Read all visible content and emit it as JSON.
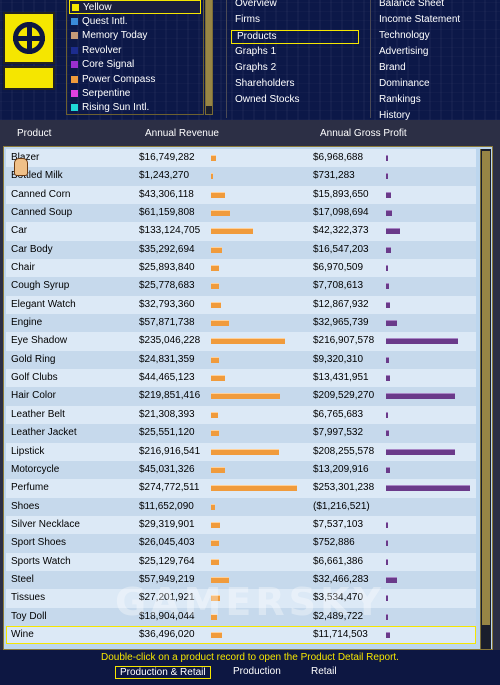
{
  "firms": [
    {
      "name": "Yellow",
      "color": "#f5e600",
      "selected": true
    },
    {
      "name": "Quest Intl.",
      "color": "#3a8bd9"
    },
    {
      "name": "Memory Today",
      "color": "#c49a78"
    },
    {
      "name": "Revolver",
      "color": "#1c2c8e"
    },
    {
      "name": "Core Signal",
      "color": "#9a2fd0"
    },
    {
      "name": "Power Compass",
      "color": "#f09b3c"
    },
    {
      "name": "Serpentine",
      "color": "#e040e0"
    },
    {
      "name": "Rising Sun Intl.",
      "color": "#20d8d8"
    }
  ],
  "menu_left": [
    "Overview",
    "Firms",
    "Products",
    "Graphs 1",
    "Graphs 2",
    "Shareholders",
    "Owned Stocks"
  ],
  "menu_left_selected": "Products",
  "menu_right": [
    "Balance Sheet",
    "Income Statement",
    "Technology",
    "Advertising",
    "Brand",
    "Dominance",
    "Rankings",
    "History"
  ],
  "table": {
    "headers": {
      "product": "Product",
      "revenue": "Annual Revenue",
      "profit": "Annual Gross Profit"
    },
    "rows": [
      {
        "product": "Blazer",
        "revenue": "$16,749,282",
        "profit": "$6,968,688",
        "rev_val": 16749282,
        "prof_val": 6968688
      },
      {
        "product": "Bottled Milk",
        "revenue": "$1,243,270",
        "profit": "$731,283",
        "rev_val": 1243270,
        "prof_val": 731283
      },
      {
        "product": "Canned Corn",
        "revenue": "$43,306,118",
        "profit": "$15,893,650",
        "rev_val": 43306118,
        "prof_val": 15893650
      },
      {
        "product": "Canned Soup",
        "revenue": "$61,159,808",
        "profit": "$17,098,694",
        "rev_val": 61159808,
        "prof_val": 17098694
      },
      {
        "product": "Car",
        "revenue": "$133,124,705",
        "profit": "$42,322,373",
        "rev_val": 133124705,
        "prof_val": 42322373
      },
      {
        "product": "Car Body",
        "revenue": "$35,292,694",
        "profit": "$16,547,203",
        "rev_val": 35292694,
        "prof_val": 16547203
      },
      {
        "product": "Chair",
        "revenue": "$25,893,840",
        "profit": "$6,970,509",
        "rev_val": 25893840,
        "prof_val": 6970509
      },
      {
        "product": "Cough Syrup",
        "revenue": "$25,778,683",
        "profit": "$7,708,613",
        "rev_val": 25778683,
        "prof_val": 7708613
      },
      {
        "product": "Elegant Watch",
        "revenue": "$32,793,360",
        "profit": "$12,867,932",
        "rev_val": 32793360,
        "prof_val": 12867932
      },
      {
        "product": "Engine",
        "revenue": "$57,871,738",
        "profit": "$32,965,739",
        "rev_val": 57871738,
        "prof_val": 32965739
      },
      {
        "product": "Eye Shadow",
        "revenue": "$235,046,228",
        "profit": "$216,907,578",
        "rev_val": 235046228,
        "prof_val": 216907578
      },
      {
        "product": "Gold Ring",
        "revenue": "$24,831,359",
        "profit": "$9,320,310",
        "rev_val": 24831359,
        "prof_val": 9320310
      },
      {
        "product": "Golf Clubs",
        "revenue": "$44,465,123",
        "profit": "$13,431,951",
        "rev_val": 44465123,
        "prof_val": 13431951
      },
      {
        "product": "Hair Color",
        "revenue": "$219,851,416",
        "profit": "$209,529,270",
        "rev_val": 219851416,
        "prof_val": 209529270
      },
      {
        "product": "Leather Belt",
        "revenue": "$21,308,393",
        "profit": "$6,765,683",
        "rev_val": 21308393,
        "prof_val": 6765683
      },
      {
        "product": "Leather Jacket",
        "revenue": "$25,551,120",
        "profit": "$7,997,532",
        "rev_val": 25551120,
        "prof_val": 7997532
      },
      {
        "product": "Lipstick",
        "revenue": "$216,916,541",
        "profit": "$208,255,578",
        "rev_val": 216916541,
        "prof_val": 208255578
      },
      {
        "product": "Motorcycle",
        "revenue": "$45,031,326",
        "profit": "$13,209,916",
        "rev_val": 45031326,
        "prof_val": 13209916
      },
      {
        "product": "Perfume",
        "revenue": "$274,772,511",
        "profit": "$253,301,238",
        "rev_val": 274772511,
        "prof_val": 253301238
      },
      {
        "product": "Shoes",
        "revenue": "$11,652,090",
        "profit": "($1,216,521)",
        "rev_val": 11652090,
        "prof_val": -1216521
      },
      {
        "product": "Silver Necklace",
        "revenue": "$29,319,901",
        "profit": "$7,537,103",
        "rev_val": 29319901,
        "prof_val": 7537103
      },
      {
        "product": "Sport Shoes",
        "revenue": "$26,045,403",
        "profit": "$752,886",
        "rev_val": 26045403,
        "prof_val": 752886
      },
      {
        "product": "Sports Watch",
        "revenue": "$25,129,764",
        "profit": "$6,661,386",
        "rev_val": 25129764,
        "prof_val": 6661386
      },
      {
        "product": "Steel",
        "revenue": "$57,949,219",
        "profit": "$32,466,283",
        "rev_val": 57949219,
        "prof_val": 32466283
      },
      {
        "product": "Tissues",
        "revenue": "$27,201,921",
        "profit": "$3,534,470",
        "rev_val": 27201921,
        "prof_val": 3534470
      },
      {
        "product": "Toy Doll",
        "revenue": "$18,904,044",
        "profit": "$2,489,722",
        "rev_val": 18904044,
        "prof_val": 2489722
      },
      {
        "product": "Wine",
        "revenue": "$36,496,020",
        "profit": "$11,714,503",
        "rev_val": 36496020,
        "prof_val": 11714503
      }
    ]
  },
  "hint": "Double-click on a product record to open the Product Detail Report.",
  "bottom_tabs": [
    "Production & Retail",
    "Production",
    "Retail"
  ],
  "bottom_tab_selected": "Production & Retail",
  "watermark": "GAMERSKY",
  "colors": {
    "accent": "#f5e600",
    "revenue_bar": "#f09b3c",
    "profit_bar": "#6a3a8a"
  }
}
